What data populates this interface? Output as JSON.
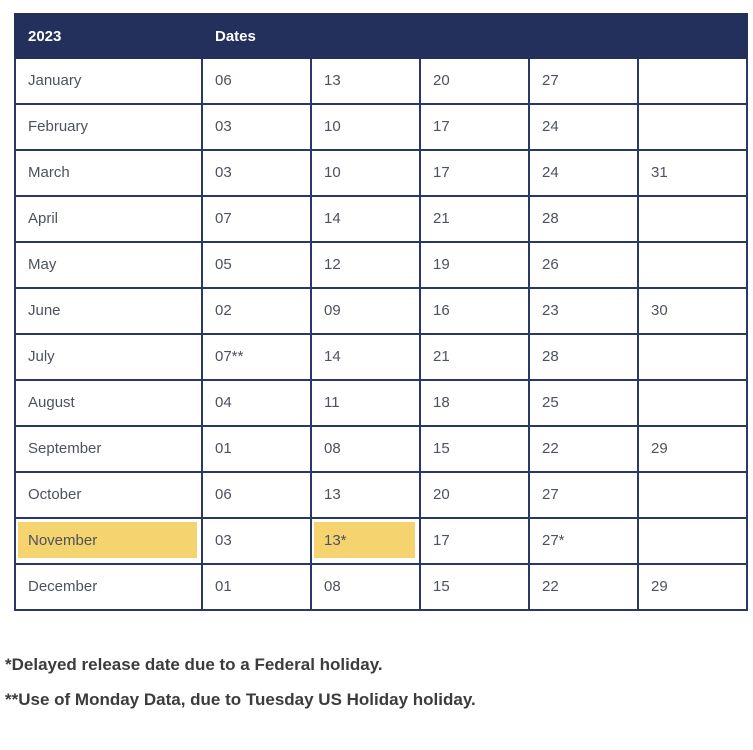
{
  "header": {
    "year": "2023",
    "dates_label": "Dates"
  },
  "colors": {
    "header_bg": "#24305c",
    "table_border": "#2b3764",
    "highlight": "#f5d36e",
    "cell_text": "#4c525e",
    "footnote_text": "#3c3c3c"
  },
  "schedule": {
    "rows": [
      {
        "month": "January",
        "dates": [
          "06",
          "13",
          "20",
          "27",
          ""
        ]
      },
      {
        "month": "February",
        "dates": [
          "03",
          "10",
          "17",
          "24",
          ""
        ]
      },
      {
        "month": "March",
        "dates": [
          "03",
          "10",
          "17",
          "24",
          "31"
        ]
      },
      {
        "month": "April",
        "dates": [
          "07",
          "14",
          "21",
          "28",
          ""
        ]
      },
      {
        "month": "May",
        "dates": [
          "05",
          "12",
          "19",
          "26",
          ""
        ]
      },
      {
        "month": "June",
        "dates": [
          "02",
          "09",
          "16",
          "23",
          "30"
        ]
      },
      {
        "month": "July",
        "dates": [
          "07**",
          "14",
          "21",
          "28",
          ""
        ]
      },
      {
        "month": "August",
        "dates": [
          "04",
          "11",
          "18",
          "25",
          ""
        ]
      },
      {
        "month": "September",
        "dates": [
          "01",
          "08",
          "15",
          "22",
          "29"
        ]
      },
      {
        "month": "October",
        "dates": [
          "06",
          "13",
          "20",
          "27",
          ""
        ]
      },
      {
        "month": "November",
        "dates": [
          "03",
          "13*",
          "17",
          "27*",
          ""
        ],
        "month_highlighted": true,
        "highlighted_date_indexes": [
          1
        ]
      },
      {
        "month": "December",
        "dates": [
          "01",
          "08",
          "15",
          "22",
          "29"
        ]
      }
    ]
  },
  "footnotes": [
    "*Delayed release date due to a Federal holiday.",
    "**Use of Monday Data, due to Tuesday US Holiday holiday."
  ]
}
